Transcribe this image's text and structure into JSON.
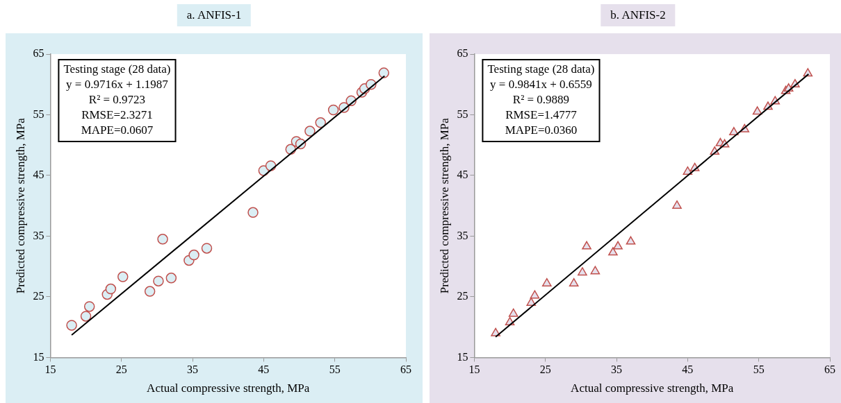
{
  "chart_data": [
    {
      "type": "scatter",
      "title": "a. ANFIS-1",
      "xlabel": "Actual compressive strength, MPa",
      "ylabel": "Predicted compressive strength, MPa",
      "xlim": [
        15,
        65
      ],
      "ylim": [
        15,
        65
      ],
      "xticks": [
        15,
        25,
        35,
        45,
        55,
        65
      ],
      "yticks": [
        15,
        25,
        35,
        45,
        55,
        65
      ],
      "grid": false,
      "legend": false,
      "annotations": [
        "Testing stage (28 data)",
        "y = 0.9716x + 1.1987",
        "R² = 0.9723",
        "RMSE=2.3271",
        "MAPE=0.0607"
      ],
      "series": [
        {
          "color": "#c0504d",
          "marker": "circle",
          "x": [
            18,
            20,
            20.5,
            23,
            23.5,
            25.2,
            29,
            30.2,
            30.8,
            32,
            34.5,
            35.2,
            37,
            43.5,
            45,
            46,
            48.8,
            49.6,
            50.2,
            51.5,
            53,
            54.8,
            56.3,
            57.3,
            58.8,
            59.2,
            60.1,
            61.9
          ],
          "values": [
            20.3,
            21.8,
            23.4,
            25.4,
            26.3,
            28.3,
            25.9,
            27.6,
            34.5,
            28.1,
            31,
            31.9,
            33,
            38.9,
            45.8,
            46.6,
            49.3,
            50.6,
            50.2,
            52.3,
            53.7,
            55.8,
            56.2,
            57.3,
            58.7,
            59.3,
            60,
            61.9
          ]
        },
        {
          "type": "line",
          "marker": "none",
          "color": "#000000",
          "x": [
            18,
            62
          ],
          "values": [
            18.7,
            61.4
          ]
        }
      ]
    },
    {
      "type": "scatter",
      "title": "b. ANFIS-2",
      "xlabel": "Actual compressive strength, MPa",
      "ylabel": "Predicted compressive strength, MPa",
      "xlim": [
        15,
        65
      ],
      "ylim": [
        15,
        65
      ],
      "xticks": [
        15,
        25,
        35,
        45,
        55,
        65
      ],
      "yticks": [
        15,
        25,
        35,
        45,
        55,
        65
      ],
      "grid": false,
      "legend": false,
      "annotations": [
        "Testing stage (28 data)",
        "y = 0.9841x + 0.6559",
        "R² = 0.9889",
        "RMSE=1.4777",
        "MAPE=0.0360"
      ],
      "series": [
        {
          "color": "#c0504d",
          "marker": "triangle",
          "x": [
            18,
            20,
            20.5,
            23,
            23.5,
            25.2,
            29,
            30.2,
            30.8,
            32,
            34.5,
            35.2,
            37,
            43.5,
            45,
            46,
            48.8,
            49.6,
            50.2,
            51.5,
            53,
            54.8,
            56.3,
            57.3,
            58.8,
            59.2,
            60.1,
            61.9
          ],
          "values": [
            19,
            20.8,
            22.2,
            24,
            25.2,
            27.2,
            27.2,
            29,
            33.3,
            29.2,
            32.3,
            33.3,
            34.1,
            40,
            45.6,
            46.2,
            48.9,
            50.3,
            50.1,
            52.1,
            52.6,
            55.5,
            56.3,
            57.2,
            58.9,
            59.3,
            60,
            61.8
          ]
        },
        {
          "type": "line",
          "marker": "none",
          "color": "#000000",
          "x": [
            18,
            62
          ],
          "values": [
            18.4,
            61.7
          ]
        }
      ]
    }
  ]
}
